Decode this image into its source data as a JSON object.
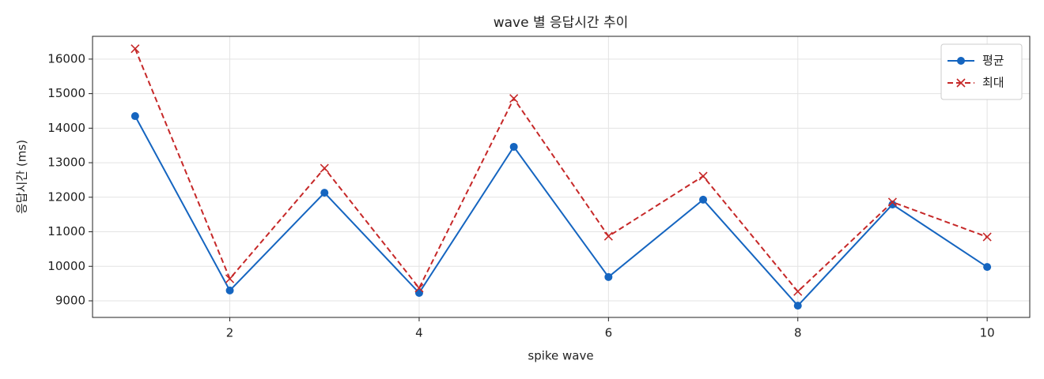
{
  "chart_data": {
    "type": "line",
    "title": "wave 별 응답시간 추이",
    "xlabel": "spike wave",
    "ylabel": "응답시간 (ms)",
    "x": [
      1,
      2,
      3,
      4,
      5,
      6,
      7,
      8,
      9,
      10
    ],
    "series": [
      {
        "name": "평균",
        "color": "#1565c0",
        "marker": "o",
        "dash": false,
        "values": [
          14350,
          9300,
          12130,
          9230,
          13460,
          9690,
          11930,
          8860,
          11790,
          9980
        ]
      },
      {
        "name": "최대",
        "color": "#c62828",
        "marker": "x",
        "dash": true,
        "values": [
          16300,
          9640,
          12840,
          9370,
          14860,
          10870,
          12610,
          9270,
          11860,
          10850
        ]
      }
    ],
    "xlim": [
      0.55,
      10.45
    ],
    "xticks": [
      2,
      4,
      6,
      8,
      10
    ],
    "ylim": [
      8520,
      16660
    ],
    "yticks": [
      9000,
      10000,
      11000,
      12000,
      13000,
      14000,
      15000,
      16000
    ],
    "grid": true,
    "legend": "upper right"
  }
}
